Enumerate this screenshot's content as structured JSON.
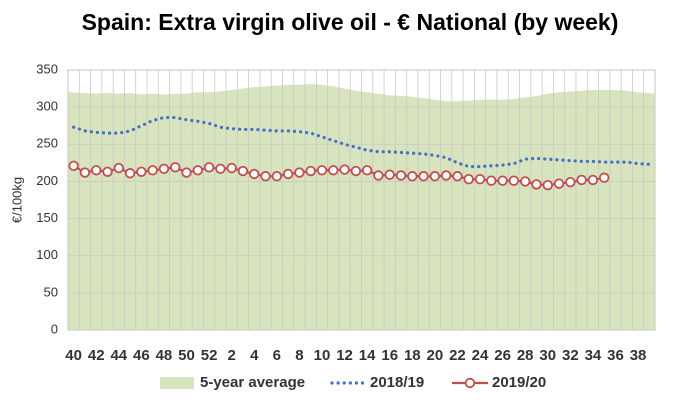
{
  "chart_data": {
    "type": "line",
    "title": "Spain: Extra virgin olive oil - € National (by week)",
    "y_label": "€/100kg",
    "categories": [
      "40",
      null,
      "42",
      null,
      "44",
      null,
      "46",
      null,
      "48",
      null,
      "50",
      null,
      "52",
      null,
      "2",
      null,
      "4",
      null,
      "6",
      null,
      "8",
      null,
      "10",
      null,
      "12",
      null,
      "14",
      null,
      "16",
      null,
      "18",
      null,
      "20",
      null,
      "22",
      null,
      "24",
      null,
      "26",
      null,
      "28",
      null,
      "30",
      null,
      "32",
      null,
      "34",
      null,
      "36",
      null,
      "38",
      null
    ],
    "ylim": [
      0,
      350
    ],
    "yticks": [
      0,
      50,
      100,
      150,
      200,
      250,
      300,
      350
    ],
    "grid": true,
    "legend": "bottom",
    "series": [
      {
        "name": "5-year average",
        "type": "area",
        "color": "#d7e4bd",
        "values": [
          320,
          319,
          318,
          319,
          318,
          319,
          317,
          318,
          317,
          318,
          318,
          320,
          320,
          321,
          323,
          325,
          327,
          328,
          329,
          330,
          330,
          331,
          330,
          328,
          325,
          322,
          320,
          318,
          316,
          315,
          314,
          312,
          310,
          308,
          308,
          309,
          310,
          310,
          310,
          311,
          313,
          315,
          318,
          320,
          321,
          322,
          323,
          323,
          323,
          322,
          320,
          318
        ]
      },
      {
        "name": "2018/19",
        "type": "dotted",
        "color": "#4472c4",
        "values": [
          273,
          268,
          266,
          265,
          265,
          268,
          275,
          282,
          286,
          286,
          283,
          281,
          278,
          273,
          271,
          270,
          270,
          269,
          268,
          268,
          267,
          265,
          260,
          255,
          250,
          246,
          242,
          240,
          240,
          239,
          238,
          237,
          235,
          232,
          225,
          220,
          220,
          221,
          222,
          224,
          230,
          231,
          230,
          229,
          228,
          227,
          227,
          226,
          226,
          226,
          224,
          223
        ]
      },
      {
        "name": "2019/20",
        "type": "marker-line",
        "color": "#c0504d",
        "values": [
          221,
          212,
          215,
          213,
          218,
          211,
          213,
          215,
          217,
          219,
          212,
          215,
          219,
          217,
          218,
          214,
          210,
          207,
          207,
          210,
          212,
          214,
          215,
          215,
          216,
          214,
          215,
          208,
          209,
          208,
          207,
          207,
          207,
          208,
          207,
          203,
          203,
          201,
          201,
          201,
          200,
          196,
          195,
          197,
          199,
          202,
          202,
          205,
          null,
          null,
          null,
          null
        ]
      }
    ]
  }
}
